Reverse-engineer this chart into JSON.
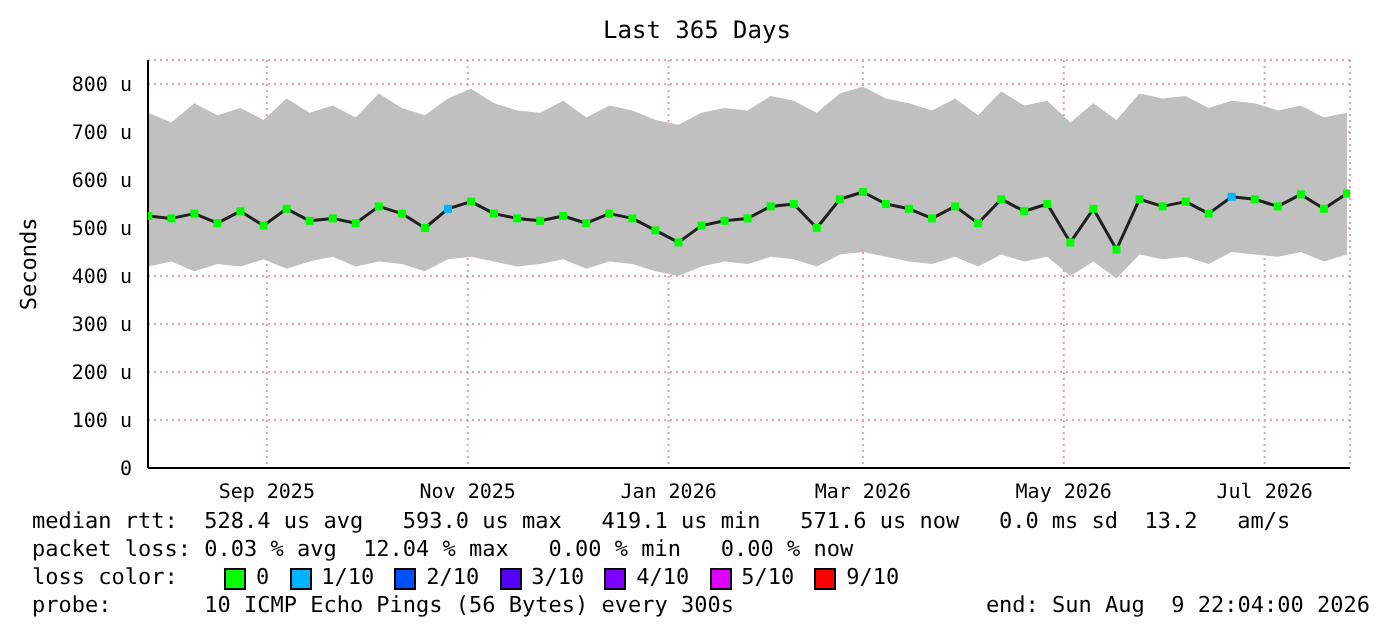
{
  "chart_data": {
    "type": "scatter",
    "title": "Last 365 Days",
    "ylabel": "Seconds",
    "x": [
      "2025-08-10",
      "2025-08-17",
      "2025-08-24",
      "2025-08-31",
      "2025-09-07",
      "2025-09-14",
      "2025-09-21",
      "2025-09-28",
      "2025-10-05",
      "2025-10-12",
      "2025-10-19",
      "2025-10-26",
      "2025-11-02",
      "2025-11-09",
      "2025-11-16",
      "2025-11-23",
      "2025-11-30",
      "2025-12-07",
      "2025-12-14",
      "2025-12-21",
      "2025-12-28",
      "2026-01-04",
      "2026-01-11",
      "2026-01-18",
      "2026-01-25",
      "2026-02-01",
      "2026-02-08",
      "2026-02-15",
      "2026-02-22",
      "2026-03-01",
      "2026-03-08",
      "2026-03-15",
      "2026-03-22",
      "2026-03-29",
      "2026-04-05",
      "2026-04-12",
      "2026-04-19",
      "2026-04-26",
      "2026-05-03",
      "2026-05-10",
      "2026-05-17",
      "2026-05-24",
      "2026-05-31",
      "2026-06-07",
      "2026-06-14",
      "2026-06-21",
      "2026-06-28",
      "2026-07-05",
      "2026-07-12",
      "2026-07-19",
      "2026-07-26",
      "2026-08-02",
      "2026-08-09"
    ],
    "series": [
      {
        "type": "line",
        "marker": "none",
        "color": "#202020",
        "values": [
          525,
          520,
          530,
          510,
          535,
          505,
          540,
          515,
          520,
          510,
          545,
          530,
          500,
          540,
          555,
          530,
          520,
          515,
          525,
          510,
          530,
          520,
          495,
          470,
          505,
          515,
          520,
          545,
          550,
          500,
          560,
          575,
          550,
          540,
          520,
          545,
          510,
          560,
          535,
          550,
          470,
          540,
          455,
          560,
          545,
          555,
          530,
          565,
          560,
          545,
          570,
          540,
          572
        ],
        "lower": [
          420,
          430,
          410,
          425,
          420,
          435,
          415,
          430,
          440,
          420,
          430,
          425,
          410,
          435,
          440,
          430,
          420,
          425,
          435,
          415,
          430,
          425,
          410,
          400,
          420,
          430,
          425,
          440,
          435,
          420,
          445,
          450,
          440,
          430,
          425,
          440,
          420,
          445,
          430,
          440,
          400,
          430,
          395,
          445,
          435,
          440,
          425,
          450,
          445,
          440,
          450,
          430,
          445
        ],
        "upper": [
          740,
          720,
          760,
          735,
          750,
          725,
          770,
          740,
          755,
          730,
          780,
          750,
          735,
          770,
          790,
          760,
          745,
          740,
          765,
          730,
          755,
          745,
          725,
          715,
          740,
          750,
          745,
          775,
          765,
          740,
          780,
          795,
          770,
          760,
          745,
          770,
          735,
          785,
          755,
          765,
          720,
          760,
          725,
          780,
          770,
          775,
          750,
          765,
          760,
          745,
          755,
          730,
          740
        ]
      },
      {
        "name": "0",
        "color": "#00ff00",
        "values": [
          525,
          520,
          530,
          510,
          535,
          505,
          540,
          515,
          520,
          510,
          545,
          530,
          500,
          null,
          555,
          530,
          520,
          515,
          525,
          510,
          530,
          520,
          495,
          470,
          505,
          515,
          520,
          545,
          550,
          500,
          560,
          575,
          550,
          540,
          520,
          545,
          510,
          560,
          535,
          550,
          470,
          540,
          455,
          560,
          545,
          555,
          530,
          null,
          560,
          545,
          570,
          540,
          572
        ]
      },
      {
        "name": "1/10",
        "color": "#00b4ff",
        "values": [
          null,
          null,
          null,
          null,
          null,
          null,
          null,
          null,
          null,
          null,
          null,
          null,
          null,
          540,
          null,
          null,
          null,
          null,
          null,
          null,
          null,
          null,
          null,
          null,
          null,
          null,
          null,
          null,
          null,
          null,
          null,
          null,
          null,
          null,
          null,
          null,
          null,
          null,
          null,
          null,
          null,
          null,
          null,
          null,
          null,
          null,
          null,
          565,
          null,
          null,
          null,
          null,
          null
        ]
      },
      {
        "name": "2/10",
        "color": "#0050ff",
        "values": [
          null,
          null,
          null,
          null,
          null,
          null,
          null,
          null,
          null,
          null,
          null,
          null,
          null,
          null,
          null,
          null,
          null,
          null,
          null,
          null,
          null,
          null,
          null,
          null,
          null,
          null,
          null,
          null,
          null,
          null,
          null,
          null,
          null,
          null,
          null,
          null,
          null,
          null,
          null,
          null,
          null,
          null,
          null,
          null,
          null,
          null,
          null,
          null,
          null,
          null,
          null,
          null,
          null
        ]
      },
      {
        "name": "3/10",
        "color": "#5500ff",
        "values": [
          null,
          null,
          null,
          null,
          null,
          null,
          null,
          null,
          null,
          null,
          null,
          null,
          null,
          null,
          null,
          null,
          null,
          null,
          null,
          null,
          null,
          null,
          null,
          null,
          null,
          null,
          null,
          null,
          null,
          null,
          null,
          null,
          null,
          null,
          null,
          null,
          null,
          null,
          null,
          null,
          null,
          null,
          null,
          null,
          null,
          null,
          null,
          null,
          null,
          null,
          null,
          null,
          null
        ]
      },
      {
        "name": "4/10",
        "color": "#7e00ff",
        "values": [
          null,
          null,
          null,
          null,
          null,
          null,
          null,
          null,
          null,
          null,
          null,
          null,
          null,
          null,
          null,
          null,
          null,
          null,
          null,
          null,
          null,
          null,
          null,
          null,
          null,
          null,
          null,
          null,
          null,
          null,
          null,
          null,
          null,
          null,
          null,
          null,
          null,
          null,
          null,
          null,
          null,
          null,
          null,
          null,
          null,
          null,
          null,
          null,
          null,
          null,
          null,
          null,
          null
        ]
      },
      {
        "name": "5/10",
        "color": "#dd00ff",
        "values": [
          null,
          null,
          null,
          null,
          null,
          null,
          null,
          null,
          null,
          null,
          null,
          null,
          null,
          null,
          null,
          null,
          null,
          null,
          null,
          null,
          null,
          null,
          null,
          null,
          null,
          null,
          null,
          null,
          null,
          null,
          null,
          null,
          null,
          null,
          null,
          null,
          null,
          null,
          null,
          null,
          null,
          null,
          null,
          null,
          null,
          null,
          null,
          null,
          null,
          null,
          null,
          null,
          null
        ]
      },
      {
        "name": "9/10",
        "color": "#ff0000",
        "values": [
          null,
          null,
          null,
          null,
          null,
          null,
          null,
          null,
          null,
          null,
          null,
          null,
          null,
          null,
          null,
          null,
          null,
          null,
          null,
          null,
          null,
          null,
          null,
          null,
          null,
          null,
          null,
          null,
          null,
          null,
          null,
          null,
          null,
          null,
          null,
          null,
          null,
          null,
          null,
          null,
          null,
          null,
          null,
          null,
          null,
          null,
          null,
          null,
          null,
          null,
          null,
          null,
          null
        ]
      }
    ],
    "xlim": [
      "2025-08-09T22:04",
      "2026-08-09T22:04"
    ],
    "xticks": [
      {
        "value": "2025-09-15",
        "label": "Sep 2025"
      },
      {
        "value": "2025-11-15",
        "label": "Nov 2025"
      },
      {
        "value": "2026-01-15",
        "label": "Jan 2026"
      },
      {
        "value": "2026-03-15",
        "label": "Mar 2026"
      },
      {
        "value": "2026-05-15",
        "label": "May 2026"
      },
      {
        "value": "2026-07-15",
        "label": "Jul 2026"
      }
    ],
    "ylim": [
      0,
      850
    ],
    "yticks": [
      0,
      {
        "value": 100,
        "label": "100 u"
      },
      {
        "value": 200,
        "label": "200 u"
      },
      {
        "value": 300,
        "label": "300 u"
      },
      {
        "value": 400,
        "label": "400 u"
      },
      {
        "value": 500,
        "label": "500 u"
      },
      {
        "value": 600,
        "label": "600 u"
      },
      {
        "value": 700,
        "label": "700 u"
      },
      {
        "value": 800,
        "label": "800 u"
      }
    ],
    "grid": true,
    "marker": "square",
    "legend": "bottom",
    "legend_title": "loss color:",
    "annotations": [
      "median rtt:  528.4 us avg   593.0 us max   419.1 us min   571.6 us now   0.0 ms sd  13.2   am/s",
      "packet loss: 0.03 % avg  12.04 % max   0.00 % min   0.00 % now",
      "probe:       10 ICMP Echo Pings (56 Bytes) every 300s",
      "end: Sun Aug  9 22:04:00 2026"
    ]
  }
}
